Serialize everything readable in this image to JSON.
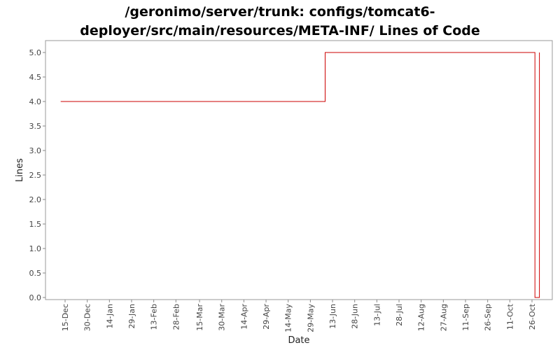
{
  "chart_data": {
    "type": "line",
    "title_line1": "/geronimo/server/trunk: configs/tomcat6-",
    "title_line2": "deployer/src/main/resources/META-INF/ Lines of Code",
    "xlabel": "Date",
    "ylabel": "Lines",
    "ylim": [
      0.0,
      5.0
    ],
    "yticks": [
      "0.0",
      "0.5",
      "1.0",
      "1.5",
      "2.0",
      "2.5",
      "3.0",
      "3.5",
      "4.0",
      "4.5",
      "5.0"
    ],
    "xticks": [
      "15-Dec",
      "30-Dec",
      "14-Jan",
      "29-Jan",
      "13-Feb",
      "28-Feb",
      "15-Mar",
      "30-Mar",
      "14-Apr",
      "29-Apr",
      "14-May",
      "29-May",
      "13-Jun",
      "28-Jun",
      "13-Jul",
      "28-Jul",
      "12-Aug",
      "27-Aug",
      "11-Sep",
      "26-Sep",
      "11-Oct",
      "26-Oct"
    ],
    "series": [
      {
        "color": "#cc0000",
        "points": [
          {
            "x": "12-Dec",
            "y": 4
          },
          {
            "x": "8-Jun",
            "y": 4
          },
          {
            "x": "8-Jun",
            "y": 5
          },
          {
            "x": "28-Oct",
            "y": 5
          },
          {
            "x": "28-Oct",
            "y": 0
          },
          {
            "x": "31-Oct",
            "y": 0
          },
          {
            "x": "31-Oct",
            "y": 5
          }
        ]
      }
    ],
    "grid": false
  }
}
